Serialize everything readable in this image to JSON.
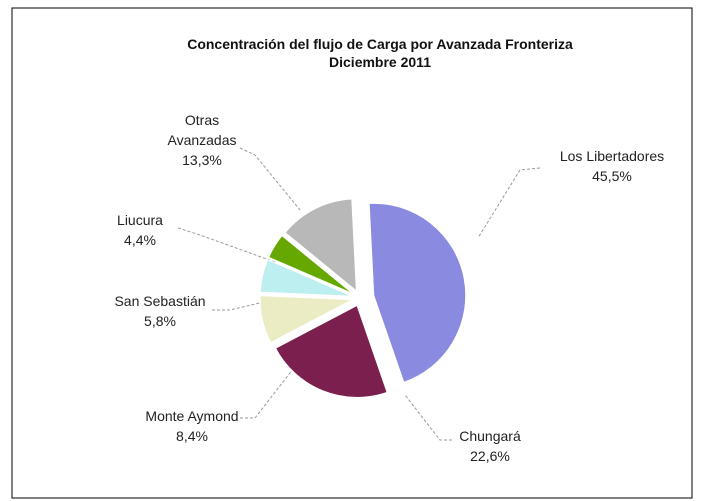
{
  "chart_data": {
    "type": "pie",
    "title": "Concentración del flujo de Carga por Avanzada Fronteriza",
    "subtitle": "Diciembre  2011",
    "categories": [
      "Los Libertadores",
      "Chungará",
      "Monte Aymond",
      "San Sebastián",
      "Liucura",
      "Otras Avanzadas"
    ],
    "values": [
      45.5,
      22.6,
      8.4,
      5.8,
      4.4,
      13.3
    ],
    "value_labels": [
      "45,5%",
      "22,6%",
      "8,4%",
      "5,8%",
      "4,4%",
      "13,3%"
    ],
    "colors": [
      "#8a8ae0",
      "#7a1f4e",
      "#ececc4",
      "#bdeef0",
      "#66a800",
      "#b8b8b8"
    ]
  }
}
